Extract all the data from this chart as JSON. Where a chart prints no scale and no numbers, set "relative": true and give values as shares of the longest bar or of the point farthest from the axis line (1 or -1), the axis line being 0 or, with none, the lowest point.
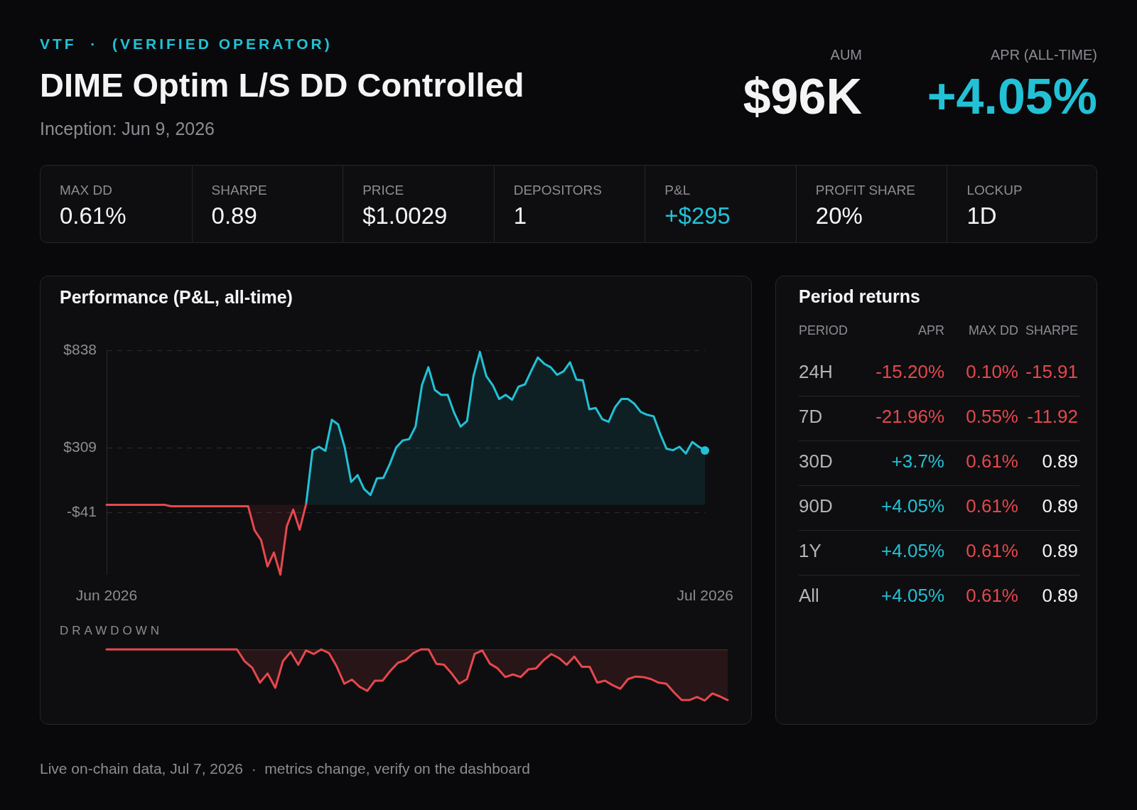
{
  "chart_data": [
    {
      "type": "other",
      "title": "DIME Optim L/S DD Controlled",
      "subtitle": "Inception: Jun 9, 2026",
      "annotations": [
        "VTF  ·  (VERIFIED OPERATOR)",
        "AUM",
        "$96K",
        "APR (ALL-TIME)",
        "+4.05%",
        "MAX DD",
        "0.61%",
        "SHARPE",
        "0.89",
        "PRICE",
        "$1.0029",
        "DEPOSITORS",
        "1",
        "P&L",
        "+$295",
        "PROFIT SHARE",
        "20%",
        "LOCKUP",
        "1D"
      ]
    },
    {
      "type": "area",
      "title": "Performance (P&L, all-time)",
      "categories": [
        "Jun 2026",
        null,
        null,
        null,
        null,
        null,
        null,
        null,
        null,
        null,
        null,
        null,
        null,
        null,
        null,
        null,
        null,
        null,
        null,
        null,
        null,
        null,
        null,
        null,
        null,
        null,
        null,
        null,
        null,
        null,
        null,
        null,
        null,
        null,
        null,
        null,
        null,
        null,
        null,
        null,
        null,
        null,
        null,
        null,
        null,
        null,
        null,
        null,
        null,
        null,
        null,
        null,
        null,
        null,
        null,
        null,
        null,
        null,
        null,
        null,
        null,
        null,
        null,
        null,
        null,
        null,
        null,
        null,
        null,
        null,
        null,
        null,
        null,
        null,
        null,
        null,
        null,
        null,
        null,
        null,
        null,
        null,
        null,
        null,
        null,
        null,
        null,
        null,
        null,
        null,
        null,
        null,
        null,
        "Jul 2026"
      ],
      "ylim": [
        -379,
        838
      ],
      "yticks": [
        {
          "value": 838,
          "label": "$838"
        },
        {
          "value": 309,
          "label": "$309"
        },
        {
          "value": -41,
          "label": "-$41"
        }
      ],
      "grid": "y",
      "series": [
        {
          "color": "#e5484d",
          "values": [
            0,
            0,
            0,
            0,
            0,
            0,
            0,
            0,
            0,
            0,
            -8,
            -8,
            -8,
            -8,
            -8,
            -8,
            -8,
            -8,
            -8,
            -8,
            -8,
            -8,
            -8,
            -139,
            -191,
            -334,
            -259,
            -379,
            -116,
            -26,
            -135,
            4,
            null,
            null,
            null,
            null,
            null,
            null,
            null,
            null,
            null,
            null,
            null,
            null,
            null,
            null,
            null,
            null,
            null,
            null,
            null,
            null,
            null,
            null,
            null,
            null,
            null,
            null,
            null,
            null,
            null,
            null,
            null,
            null,
            null,
            null,
            null,
            null,
            null,
            null,
            null,
            null,
            null,
            null,
            null,
            null,
            null,
            null,
            null,
            null,
            null,
            null,
            null,
            null,
            null,
            null,
            null,
            null,
            null,
            null,
            null,
            null,
            null,
            null
          ]
        },
        {
          "color": "#22c1d6",
          "values": [
            null,
            null,
            null,
            null,
            null,
            null,
            null,
            null,
            null,
            null,
            null,
            null,
            null,
            null,
            null,
            null,
            null,
            null,
            null,
            null,
            null,
            null,
            null,
            null,
            null,
            null,
            null,
            null,
            null,
            null,
            null,
            4,
            296,
            315,
            293,
            461,
            435,
            311,
            124,
            161,
            86,
            53,
            143,
            146,
            221,
            311,
            349,
            356,
            424,
            649,
            746,
            623,
            596,
            596,
            499,
            424,
            454,
            698,
            829,
            698,
            649,
            574,
            596,
            570,
            641,
            653,
            728,
            799,
            765,
            746,
            705,
            724,
            773,
            679,
            675,
            518,
            525,
            465,
            450,
            529,
            574,
            574,
            548,
            503,
            488,
            480,
            386,
            304,
            296,
            315,
            278,
            341,
            315,
            296
          ]
        }
      ]
    },
    {
      "type": "area",
      "title": "DRAWDOWN",
      "relative": true,
      "categories": [
        null,
        null,
        null,
        null,
        null,
        null,
        null,
        null,
        null,
        null,
        null,
        null,
        null,
        null,
        null,
        null,
        null,
        null,
        null,
        null,
        null,
        null,
        null,
        null,
        null,
        null,
        null,
        null,
        null,
        null,
        null,
        null,
        null,
        null,
        null,
        null,
        null,
        null,
        null,
        null,
        null,
        null,
        null,
        null,
        null,
        null,
        null,
        null,
        null,
        null,
        null,
        null,
        null,
        null,
        null,
        null,
        null,
        null,
        null,
        null,
        null,
        null,
        null,
        null,
        null,
        null,
        null,
        null,
        null,
        null,
        null,
        null,
        null,
        null,
        null,
        null,
        null,
        null,
        null,
        null,
        null,
        null
      ],
      "series": [
        {
          "color": "#e5484d",
          "values": [
            0,
            0,
            0,
            0,
            0,
            0,
            0,
            0,
            0,
            0,
            0,
            0,
            0,
            0,
            0,
            0,
            0,
            0,
            -0.23,
            -0.36,
            -0.65,
            -0.47,
            -0.75,
            -0.23,
            -0.05,
            -0.3,
            -0.02,
            -0.09,
            0,
            -0.07,
            -0.33,
            -0.67,
            -0.59,
            -0.73,
            -0.81,
            -0.61,
            -0.61,
            -0.42,
            -0.26,
            -0.21,
            -0.07,
            0,
            0,
            -0.28,
            -0.3,
            -0.47,
            -0.67,
            -0.58,
            -0.09,
            -0.02,
            -0.28,
            -0.37,
            -0.54,
            -0.49,
            -0.54,
            -0.39,
            -0.37,
            -0.21,
            -0.09,
            -0.17,
            -0.3,
            -0.14,
            -0.34,
            -0.34,
            -0.65,
            -0.61,
            -0.7,
            -0.77,
            -0.58,
            -0.53,
            -0.54,
            -0.58,
            -0.65,
            -0.67,
            -0.84,
            -0.99,
            -0.99,
            -0.93,
            -1,
            -0.86,
            -0.92,
            -0.99
          ]
        }
      ]
    },
    {
      "type": "other",
      "title": "Period returns",
      "annotations": [
        "PERIOD",
        "APR",
        "MAX DD",
        "SHARPE",
        "24H",
        "-15.20%",
        "0.10%",
        "-15.91",
        "7D",
        "-21.96%",
        "0.55%",
        "-11.92",
        "30D",
        "+3.7%",
        "0.61%",
        "0.89",
        "90D",
        "+4.05%",
        "0.61%",
        "0.89",
        "1Y",
        "+4.05%",
        "0.61%",
        "0.89",
        "All",
        "+4.05%",
        "0.61%",
        "0.89"
      ]
    },
    {
      "type": "other",
      "annotations": [
        "Live on-chain data, Jul 7, 2026  ·  metrics change, verify on the dashboard"
      ]
    }
  ]
}
